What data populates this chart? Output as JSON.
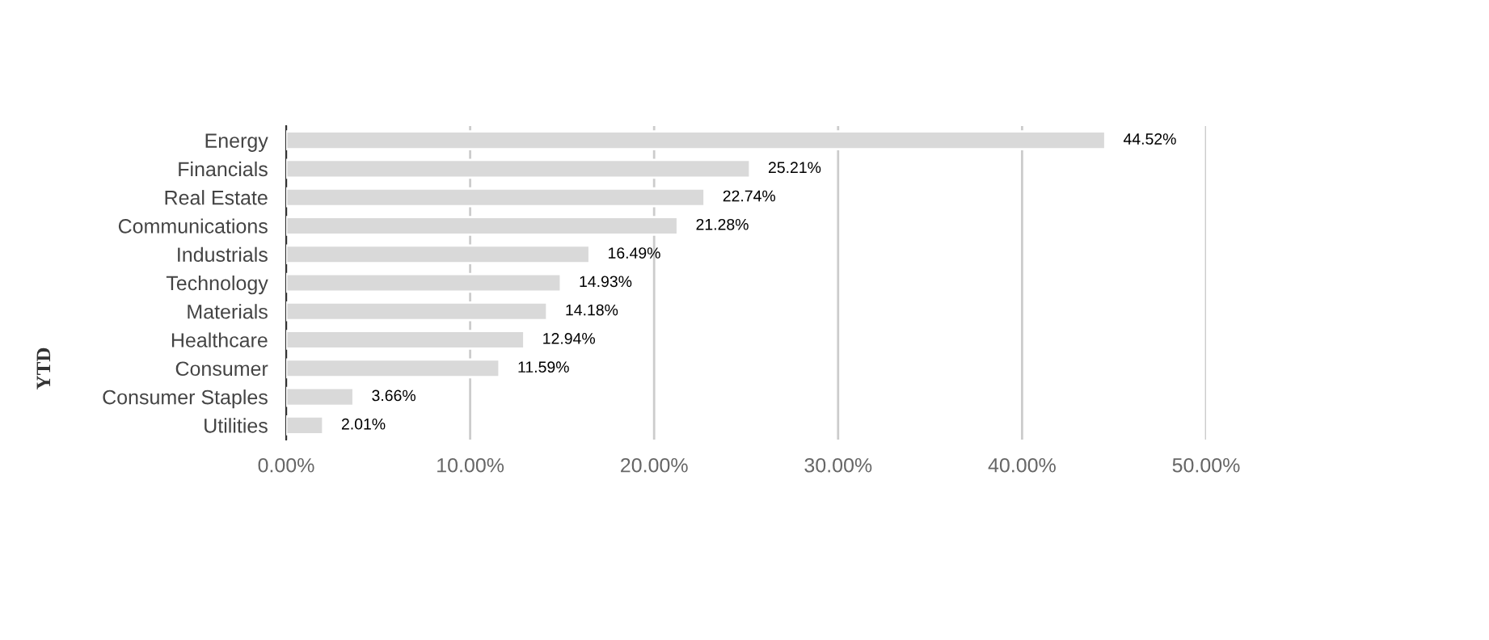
{
  "chart_data": {
    "type": "bar",
    "orientation": "horizontal",
    "ylabel": "YTD",
    "categories": [
      "Energy",
      "Financials",
      "Real Estate",
      "Communications",
      "Industrials",
      "Technology",
      "Materials",
      "Healthcare",
      "Consumer",
      "Consumer Staples",
      "Utilities"
    ],
    "values": [
      44.52,
      25.21,
      22.74,
      21.28,
      16.49,
      14.93,
      14.18,
      12.94,
      11.59,
      3.66,
      2.01
    ],
    "value_labels": [
      "44.52%",
      "25.21%",
      "22.74%",
      "21.28%",
      "16.49%",
      "14.93%",
      "14.18%",
      "12.94%",
      "11.59%",
      "3.66%",
      "2.01%"
    ],
    "color": "#d9d9d9",
    "xlim": [
      0,
      50
    ],
    "xticks": [
      {
        "value": 0,
        "label": "0.00%"
      },
      {
        "value": 10,
        "label": "10.00%"
      },
      {
        "value": 20,
        "label": "20.00%"
      },
      {
        "value": 30,
        "label": "30.00%"
      },
      {
        "value": 40,
        "label": "40.00%"
      },
      {
        "value": 50,
        "label": "50.00%"
      }
    ],
    "grid": "x"
  }
}
